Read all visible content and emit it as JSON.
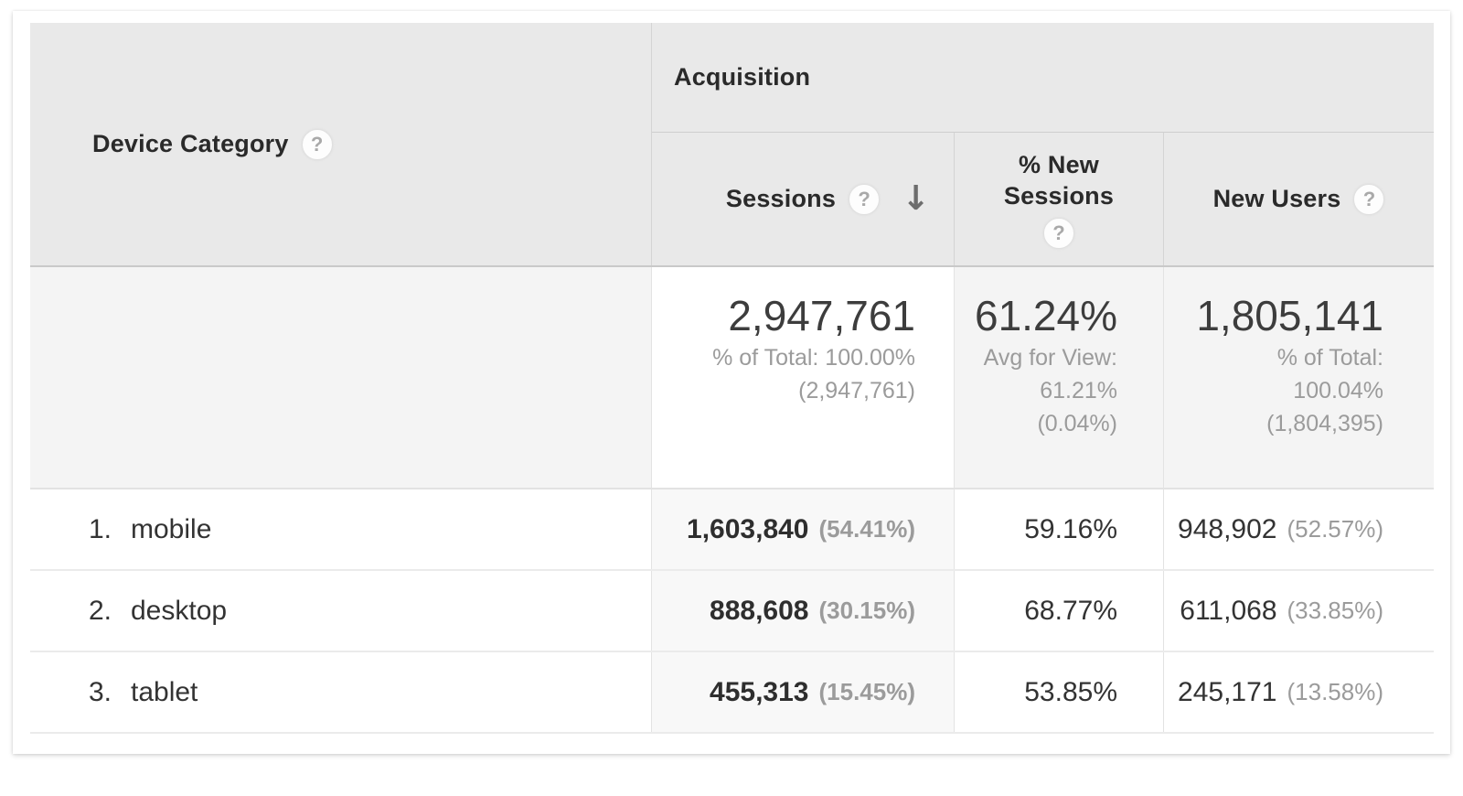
{
  "table": {
    "dimension_column": {
      "label": "Device Category"
    },
    "group_header": "Acquisition",
    "metric_columns": {
      "sessions": {
        "label": "Sessions",
        "sort": "descending"
      },
      "percent_new_sessions": {
        "label_line1": "% New",
        "label_line2": "Sessions"
      },
      "new_users": {
        "label": "New Users"
      }
    },
    "summary_row": {
      "sessions": {
        "value": "2,947,761",
        "sub1": "% of Total: 100.00%",
        "sub2": "(2,947,761)"
      },
      "percent_new_sessions": {
        "value": "61.24%",
        "sub1": "Avg for View:",
        "sub2": "61.21%",
        "sub3": "(0.04%)"
      },
      "new_users": {
        "value": "1,805,141",
        "sub1": "% of Total:",
        "sub2": "100.04%",
        "sub3": "(1,804,395)"
      }
    },
    "rows": [
      {
        "index": "1.",
        "device_category": "mobile",
        "sessions": "1,603,840",
        "sessions_percent": "(54.41%)",
        "percent_new_sessions": "59.16%",
        "new_users": "948,902",
        "new_users_percent": "(52.57%)"
      },
      {
        "index": "2.",
        "device_category": "desktop",
        "sessions": "888,608",
        "sessions_percent": "(30.15%)",
        "percent_new_sessions": "68.77%",
        "new_users": "611,068",
        "new_users_percent": "(33.85%)"
      },
      {
        "index": "3.",
        "device_category": "tablet",
        "sessions": "455,313",
        "sessions_percent": "(15.45%)",
        "percent_new_sessions": "53.85%",
        "new_users": "245,171",
        "new_users_percent": "(13.58%)"
      }
    ]
  },
  "icons": {
    "help": "?",
    "sort_descending": "↓"
  },
  "colors": {
    "header_background": "#e9e9e9",
    "sorted_column_background": "#f8f8f8",
    "summary_background": "#f4f4f4",
    "primary_text": "#333333",
    "secondary_text": "#9b9b9b"
  }
}
